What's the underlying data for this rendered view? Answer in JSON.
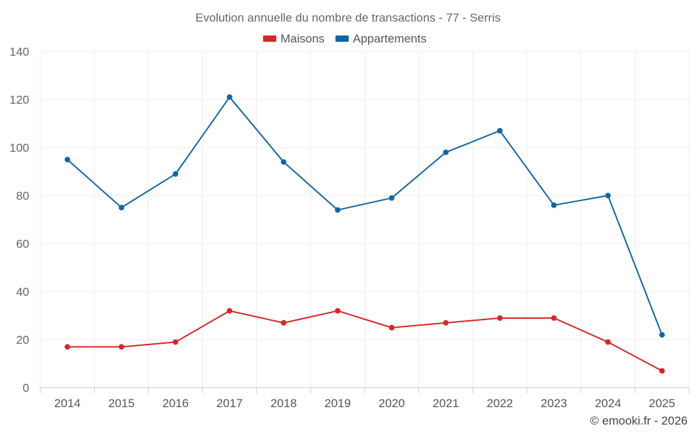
{
  "chart_data": {
    "type": "line",
    "title": "Evolution annuelle du nombre de transactions - 77 - Serris",
    "categories": [
      "2014",
      "2015",
      "2016",
      "2017",
      "2018",
      "2019",
      "2020",
      "2021",
      "2022",
      "2023",
      "2024",
      "2025"
    ],
    "ylim": [
      0,
      140
    ],
    "yticks": [
      0,
      20,
      40,
      60,
      80,
      100,
      120,
      140
    ],
    "grid": true,
    "legend_position": "top-center",
    "series": [
      {
        "name": "Maisons",
        "color": "#d62728",
        "values": [
          17,
          17,
          19,
          32,
          27,
          32,
          25,
          27,
          29,
          29,
          19,
          7
        ]
      },
      {
        "name": "Appartements",
        "color": "#1565a0",
        "values": [
          95,
          75,
          89,
          121,
          94,
          74,
          79,
          98,
          107,
          76,
          80,
          22
        ]
      }
    ]
  },
  "credit": "© emooki.fr - 2026"
}
